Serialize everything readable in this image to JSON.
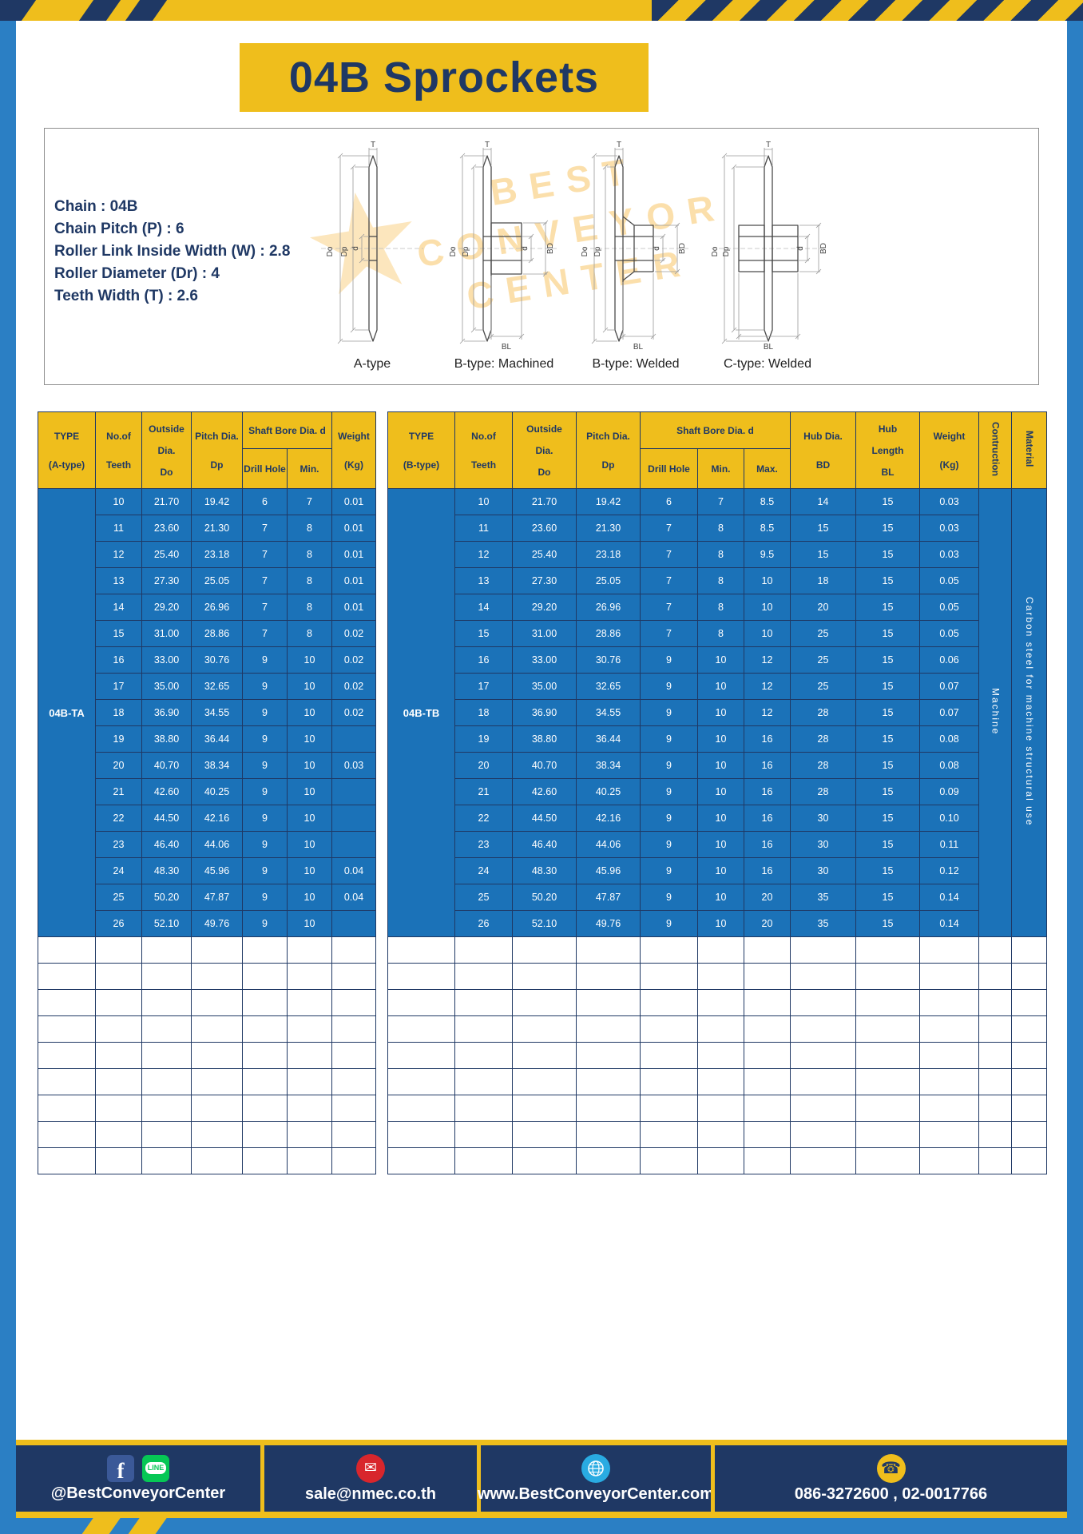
{
  "page": {
    "title": "04B Sprockets"
  },
  "colors": {
    "accent_yellow": "#efbe1c",
    "navy": "#1f3864",
    "table_blue": "#1b72b8",
    "frame_blue": "#2b7fc4"
  },
  "specs": {
    "lines": [
      "Chain : 04B",
      "Chain Pitch (P) : 6",
      "Roller Link Inside Width (W) : 2.8",
      "Roller Diameter (Dr) : 4",
      "Teeth Width (T) : 2.6"
    ]
  },
  "drawings": {
    "watermark": {
      "star": "★",
      "line1": "BEST",
      "line2": "CONVEYOR",
      "line3": "CENTER"
    },
    "dims": {
      "do": "Do",
      "dp": "Dp",
      "d": "d",
      "bd": "BD",
      "bl": "BL",
      "t": "T"
    },
    "items": [
      {
        "label": "A-type"
      },
      {
        "label": "B-type: Machined"
      },
      {
        "label": "B-type: Welded"
      },
      {
        "label": "C-type: Welded"
      }
    ]
  },
  "table_a": {
    "header": {
      "type": "TYPE",
      "type_sub": "(A-type)",
      "teeth_1": "No.of",
      "teeth_2": "Teeth",
      "outside_1": "Outside",
      "outside_2": "Dia.",
      "outside_3": "Do",
      "pitch_1": "Pitch Dia.",
      "pitch_2": "Dp",
      "shaft_bore": "Shaft Bore Dia. d",
      "drill": "Drill Hole",
      "min": "Min.",
      "weight_1": "Weight",
      "weight_2": "(Kg)"
    },
    "type_value": "04B-TA",
    "empty_rows": 9,
    "rows": [
      [
        "10",
        "21.70",
        "19.42",
        "6",
        "7",
        "0.01"
      ],
      [
        "11",
        "23.60",
        "21.30",
        "7",
        "8",
        "0.01"
      ],
      [
        "12",
        "25.40",
        "23.18",
        "7",
        "8",
        "0.01"
      ],
      [
        "13",
        "27.30",
        "25.05",
        "7",
        "8",
        "0.01"
      ],
      [
        "14",
        "29.20",
        "26.96",
        "7",
        "8",
        "0.01"
      ],
      [
        "15",
        "31.00",
        "28.86",
        "7",
        "8",
        "0.02"
      ],
      [
        "16",
        "33.00",
        "30.76",
        "9",
        "10",
        "0.02"
      ],
      [
        "17",
        "35.00",
        "32.65",
        "9",
        "10",
        "0.02"
      ],
      [
        "18",
        "36.90",
        "34.55",
        "9",
        "10",
        "0.02"
      ],
      [
        "19",
        "38.80",
        "36.44",
        "9",
        "10",
        ""
      ],
      [
        "20",
        "40.70",
        "38.34",
        "9",
        "10",
        "0.03"
      ],
      [
        "21",
        "42.60",
        "40.25",
        "9",
        "10",
        ""
      ],
      [
        "22",
        "44.50",
        "42.16",
        "9",
        "10",
        ""
      ],
      [
        "23",
        "46.40",
        "44.06",
        "9",
        "10",
        ""
      ],
      [
        "24",
        "48.30",
        "45.96",
        "9",
        "10",
        "0.04"
      ],
      [
        "25",
        "50.20",
        "47.87",
        "9",
        "10",
        "0.04"
      ],
      [
        "26",
        "52.10",
        "49.76",
        "9",
        "10",
        ""
      ]
    ]
  },
  "table_b": {
    "header": {
      "type": "TYPE",
      "type_sub": "(B-type)",
      "teeth_1": "No.of",
      "teeth_2": "Teeth",
      "outside_1": "Outside",
      "outside_2": "Dia.",
      "outside_3": "Do",
      "pitch_1": "Pitch Dia.",
      "pitch_2": "Dp",
      "shaft_bore": "Shaft Bore Dia. d",
      "drill": "Drill Hole",
      "min": "Min.",
      "max": "Max.",
      "hub_dia_1": "Hub Dia.",
      "hub_dia_2": "BD",
      "hub_len_1": "Hub",
      "hub_len_2": "Length",
      "hub_len_3": "BL",
      "weight_1": "Weight",
      "weight_2": "(Kg)",
      "construction": "Contruction",
      "material": "Material"
    },
    "type_value": "04B-TB",
    "construction_value": "Machine",
    "material_value": "Carbon steel for machine structural use",
    "empty_rows": 9,
    "rows": [
      [
        "10",
        "21.70",
        "19.42",
        "6",
        "7",
        "8.5",
        "14",
        "15",
        "0.03"
      ],
      [
        "11",
        "23.60",
        "21.30",
        "7",
        "8",
        "8.5",
        "15",
        "15",
        "0.03"
      ],
      [
        "12",
        "25.40",
        "23.18",
        "7",
        "8",
        "9.5",
        "15",
        "15",
        "0.03"
      ],
      [
        "13",
        "27.30",
        "25.05",
        "7",
        "8",
        "10",
        "18",
        "15",
        "0.05"
      ],
      [
        "14",
        "29.20",
        "26.96",
        "7",
        "8",
        "10",
        "20",
        "15",
        "0.05"
      ],
      [
        "15",
        "31.00",
        "28.86",
        "7",
        "8",
        "10",
        "25",
        "15",
        "0.05"
      ],
      [
        "16",
        "33.00",
        "30.76",
        "9",
        "10",
        "12",
        "25",
        "15",
        "0.06"
      ],
      [
        "17",
        "35.00",
        "32.65",
        "9",
        "10",
        "12",
        "25",
        "15",
        "0.07"
      ],
      [
        "18",
        "36.90",
        "34.55",
        "9",
        "10",
        "12",
        "28",
        "15",
        "0.07"
      ],
      [
        "19",
        "38.80",
        "36.44",
        "9",
        "10",
        "16",
        "28",
        "15",
        "0.08"
      ],
      [
        "20",
        "40.70",
        "38.34",
        "9",
        "10",
        "16",
        "28",
        "15",
        "0.08"
      ],
      [
        "21",
        "42.60",
        "40.25",
        "9",
        "10",
        "16",
        "28",
        "15",
        "0.09"
      ],
      [
        "22",
        "44.50",
        "42.16",
        "9",
        "10",
        "16",
        "30",
        "15",
        "0.10"
      ],
      [
        "23",
        "46.40",
        "44.06",
        "9",
        "10",
        "16",
        "30",
        "15",
        "0.11"
      ],
      [
        "24",
        "48.30",
        "45.96",
        "9",
        "10",
        "16",
        "30",
        "15",
        "0.12"
      ],
      [
        "25",
        "50.20",
        "47.87",
        "9",
        "10",
        "20",
        "35",
        "15",
        "0.14"
      ],
      [
        "26",
        "52.10",
        "49.76",
        "9",
        "10",
        "20",
        "35",
        "15",
        "0.14"
      ]
    ]
  },
  "footer": {
    "social": "@BestConveyorCenter",
    "email": "sale@nmec.co.th",
    "website": "www.BestConveyorCenter.com",
    "phone": "086-3272600 , 02-0017766",
    "icons": {
      "facebook_glyph": "f",
      "line_glyph": "LINE",
      "mail_glyph": "✉",
      "phone_glyph": "☎"
    }
  }
}
